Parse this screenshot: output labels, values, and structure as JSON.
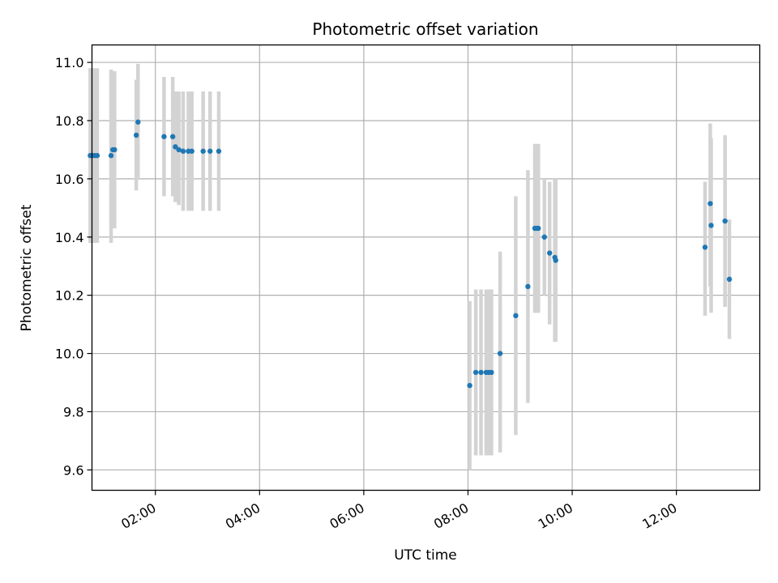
{
  "chart_data": {
    "type": "scatter",
    "title": "Photometric offset variation",
    "xlabel": "UTC time",
    "ylabel": "Photometric offset",
    "x_axis": "time (hours UTC)",
    "xlim": [
      "00:47",
      "13:36"
    ],
    "ylim": [
      9.53,
      11.06
    ],
    "xticks": [
      "02:00",
      "04:00",
      "06:00",
      "08:00",
      "10:00",
      "12:00"
    ],
    "yticks": [
      "9.6",
      "9.8",
      "10.0",
      "10.2",
      "10.4",
      "10.6",
      "10.8",
      "11.0"
    ],
    "grid": true,
    "colors": {
      "points": "#1f77b4",
      "errorbars": "#d3d3d3",
      "grid": "#b0b0b0"
    },
    "series": [
      {
        "points": [
          {
            "x": "00:45",
            "y": 10.68,
            "lo": 10.38,
            "hi": 10.98
          },
          {
            "x": "00:47",
            "y": 10.68,
            "lo": 10.38,
            "hi": 10.98
          },
          {
            "x": "00:50",
            "y": 10.68,
            "lo": 10.38,
            "hi": 10.98
          },
          {
            "x": "00:53",
            "y": 10.68,
            "lo": 10.38,
            "hi": 10.98
          },
          {
            "x": "01:09",
            "y": 10.68,
            "lo": 10.38,
            "hi": 10.975
          },
          {
            "x": "01:11",
            "y": 10.7,
            "lo": 10.43,
            "hi": 10.97
          },
          {
            "x": "01:13",
            "y": 10.7,
            "lo": 10.43,
            "hi": 10.97
          },
          {
            "x": "01:38",
            "y": 10.75,
            "lo": 10.56,
            "hi": 10.94
          },
          {
            "x": "01:40",
            "y": 10.795,
            "lo": 10.6,
            "hi": 10.995
          },
          {
            "x": "02:10",
            "y": 10.745,
            "lo": 10.54,
            "hi": 10.95
          },
          {
            "x": "02:20",
            "y": 10.745,
            "lo": 10.54,
            "hi": 10.95
          },
          {
            "x": "02:23",
            "y": 10.71,
            "lo": 10.52,
            "hi": 10.9
          },
          {
            "x": "02:27",
            "y": 10.7,
            "lo": 10.51,
            "hi": 10.9
          },
          {
            "x": "02:32",
            "y": 10.695,
            "lo": 10.49,
            "hi": 10.9
          },
          {
            "x": "02:38",
            "y": 10.695,
            "lo": 10.49,
            "hi": 10.9
          },
          {
            "x": "02:42",
            "y": 10.695,
            "lo": 10.49,
            "hi": 10.9
          },
          {
            "x": "02:55",
            "y": 10.695,
            "lo": 10.49,
            "hi": 10.9
          },
          {
            "x": "03:03",
            "y": 10.695,
            "lo": 10.49,
            "hi": 10.9
          },
          {
            "x": "03:13",
            "y": 10.695,
            "lo": 10.49,
            "hi": 10.9
          },
          {
            "x": "08:02",
            "y": 9.89,
            "lo": 9.6,
            "hi": 10.18
          },
          {
            "x": "08:09",
            "y": 9.935,
            "lo": 9.65,
            "hi": 10.22
          },
          {
            "x": "08:15",
            "y": 9.935,
            "lo": 9.65,
            "hi": 10.22
          },
          {
            "x": "08:21",
            "y": 9.935,
            "lo": 9.65,
            "hi": 10.22
          },
          {
            "x": "08:24",
            "y": 9.935,
            "lo": 9.65,
            "hi": 10.22
          },
          {
            "x": "08:27",
            "y": 9.935,
            "lo": 9.65,
            "hi": 10.22
          },
          {
            "x": "08:37",
            "y": 10.0,
            "lo": 9.66,
            "hi": 10.35
          },
          {
            "x": "08:55",
            "y": 10.13,
            "lo": 9.72,
            "hi": 10.54
          },
          {
            "x": "09:09",
            "y": 10.23,
            "lo": 9.83,
            "hi": 10.63
          },
          {
            "x": "09:17",
            "y": 10.43,
            "lo": 10.14,
            "hi": 10.72
          },
          {
            "x": "09:19",
            "y": 10.43,
            "lo": 10.14,
            "hi": 10.72
          },
          {
            "x": "09:21",
            "y": 10.43,
            "lo": 10.14,
            "hi": 10.72
          },
          {
            "x": "09:28",
            "y": 10.4,
            "lo": 10.2,
            "hi": 10.6
          },
          {
            "x": "09:34",
            "y": 10.345,
            "lo": 10.1,
            "hi": 10.59
          },
          {
            "x": "09:40",
            "y": 10.33,
            "lo": 10.04,
            "hi": 10.6
          },
          {
            "x": "09:41",
            "y": 10.32,
            "lo": 10.04,
            "hi": 10.6
          },
          {
            "x": "12:33",
            "y": 10.365,
            "lo": 10.13,
            "hi": 10.59
          },
          {
            "x": "12:39",
            "y": 10.515,
            "lo": 10.23,
            "hi": 10.79
          },
          {
            "x": "12:40",
            "y": 10.44,
            "lo": 10.14,
            "hi": 10.74
          },
          {
            "x": "12:56",
            "y": 10.455,
            "lo": 10.16,
            "hi": 10.75
          },
          {
            "x": "13:01",
            "y": 10.255,
            "lo": 10.05,
            "hi": 10.46
          }
        ]
      }
    ]
  }
}
